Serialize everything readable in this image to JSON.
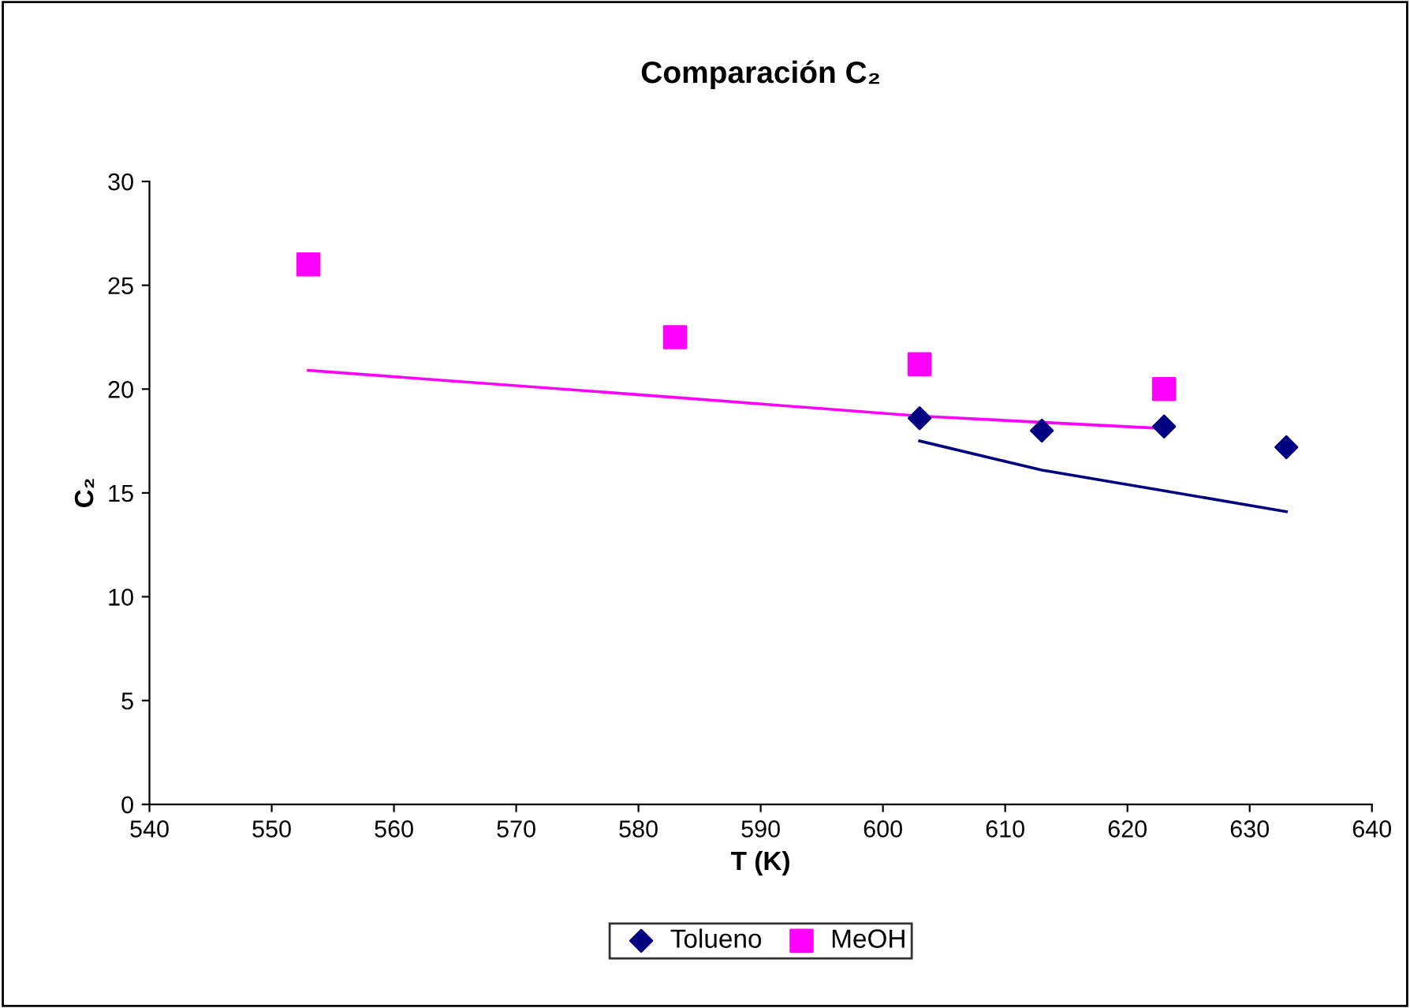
{
  "chart_data": {
    "type": "scatter",
    "title": "Comparación C₂",
    "xlabel": "T (K)",
    "ylabel": "C₂",
    "xlim": [
      540,
      640
    ],
    "xticks": [
      540,
      550,
      560,
      570,
      580,
      590,
      600,
      610,
      620,
      630,
      640
    ],
    "ylim": [
      0,
      30
    ],
    "yticks": [
      0,
      5,
      10,
      15,
      20,
      25,
      30
    ],
    "grid": false,
    "legend": "bottom",
    "series": [
      {
        "name": "Tolueno",
        "marker": "diamond",
        "color": "#000080",
        "x": [
          603,
          613,
          623,
          633
        ],
        "values": [
          18.6,
          18.0,
          18.2,
          17.2
        ]
      },
      {
        "name": "MeOH",
        "marker": "square",
        "color": "#ff00ff",
        "x": [
          553,
          583,
          603,
          623
        ],
        "values": [
          26.0,
          22.5,
          21.2,
          20.0
        ]
      },
      {
        "type": "line",
        "marker": "none",
        "color": "#000080",
        "x": [
          603,
          613,
          623,
          633
        ],
        "values": [
          17.5,
          16.1,
          15.1,
          14.1
        ]
      },
      {
        "type": "line",
        "marker": "none",
        "color": "#ff00ff",
        "x": [
          553,
          583,
          603,
          623
        ],
        "values": [
          20.9,
          19.6,
          18.7,
          18.1
        ]
      }
    ]
  }
}
